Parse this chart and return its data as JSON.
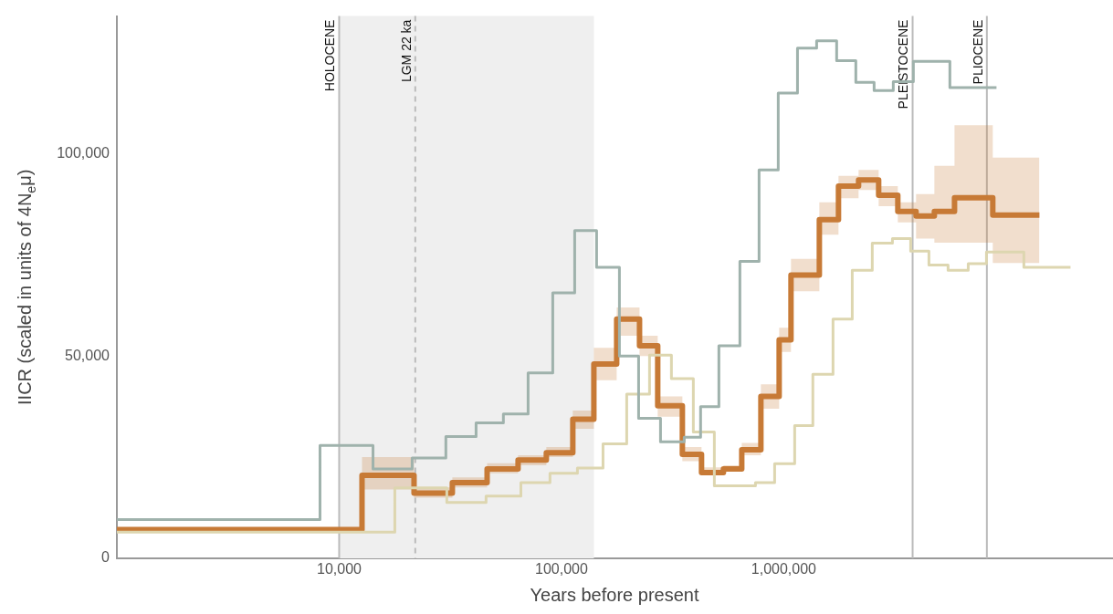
{
  "chart_data": {
    "type": "step",
    "xlabel": "Years before present",
    "ylabel": "IICR (scaled in units of 4N$_{e}$μ)",
    "log": "x",
    "xlim": [
      1000,
      30000000
    ],
    "ylim": [
      0,
      134000
    ],
    "xticks": [
      {
        "value": 10000,
        "label": "10,000"
      },
      {
        "value": 100000,
        "label": "100,000"
      },
      {
        "value": 1000000,
        "label": "1,000,000"
      }
    ],
    "yticks": [
      0,
      {
        "value": 50000,
        "label": "50,000"
      },
      {
        "value": 100000,
        "label": "100,000"
      }
    ],
    "grid": false,
    "legend": false,
    "marker": "none",
    "line_style": "solid",
    "series": [
      {
        "color": "#9fb2ac",
        "x": [
          1000,
          8200,
          14200,
          21300,
          30200,
          41300,
          54800,
          70800,
          91400,
          114700,
          143900,
          182300,
          222400,
          279000,
          356600,
          422600,
          510800,
          635000,
          774500,
          944600,
          1153000,
          1406000,
          1730000,
          2110000,
          2550000,
          3110000,
          3830000,
          5590000,
          9060000
        ],
        "values": [
          9600,
          27900,
          22100,
          24800,
          30100,
          33500,
          35700,
          45800,
          65600,
          81000,
          71900,
          50000,
          34600,
          28800,
          29900,
          37500,
          52500,
          73400,
          96000,
          115000,
          126100,
          127900,
          123000,
          117600,
          115600,
          117800,
          122800,
          116300,
          116300
        ]
      },
      {
        "color": "#ddd6b0",
        "x": [
          1000,
          17800,
          30500,
          45800,
          65700,
          88800,
          118000,
          153800,
          196600,
          249000,
          312400,
          392000,
          487300,
          746000,
          910000,
          1120000,
          1352000,
          1666000,
          2033000,
          2502000,
          3083000,
          3724000,
          4499000,
          5486000,
          6760000,
          8165000,
          12030000,
          19500000
        ],
        "values": [
          6500,
          17400,
          13800,
          15400,
          18700,
          21000,
          22300,
          28300,
          40600,
          50200,
          44400,
          31200,
          17900,
          18700,
          23400,
          32800,
          45500,
          59100,
          71200,
          77900,
          79000,
          75900,
          72500,
          71200,
          72800,
          75700,
          71900,
          71900
        ]
      },
      {
        "color": "#c77a36",
        "x": [
          1000,
          12670,
          21720,
          32300,
          46300,
          63800,
          85500,
          112500,
          139900,
          177200,
          224500,
          271100,
          349900,
          426700,
          535400,
          647300,
          789300,
          953600,
          1078000,
          1446000,
          1763000,
          2171000,
          2673000,
          3260000,
          3938000,
          4760000,
          5865000,
          8718000,
          14130000
        ],
        "values": [
          7100,
          20500,
          16100,
          18700,
          22100,
          24300,
          26100,
          34400,
          48000,
          59100,
          52500,
          37700,
          25700,
          21200,
          22100,
          26800,
          40000,
          54000,
          70000,
          83700,
          92000,
          93500,
          89700,
          85700,
          84600,
          85700,
          89100,
          84800,
          84800
        ],
        "lower": [
          6500,
          17000,
          15000,
          17500,
          21000,
          23000,
          25000,
          32000,
          44000,
          55000,
          50000,
          35000,
          24000,
          20500,
          21500,
          25500,
          37000,
          51000,
          66000,
          80000,
          89000,
          91000,
          87000,
          83000,
          79000,
          78000,
          78000,
          73000,
          73000
        ],
        "upper": [
          7700,
          25000,
          17500,
          20000,
          23500,
          25500,
          27500,
          36500,
          52000,
          62000,
          55000,
          40000,
          27500,
          22500,
          23000,
          28500,
          43000,
          57000,
          74000,
          88000,
          94500,
          96000,
          92000,
          88000,
          90000,
          97000,
          107000,
          99000,
          99000
        ]
      }
    ],
    "bands": [
      {
        "axis": "x",
        "from": 10000,
        "to": 140000,
        "color": "#efefef"
      }
    ],
    "ref_lines": [
      {
        "axis": "x",
        "value": 10000,
        "label": "HOLOCENE",
        "color": "#bbbbbb",
        "line_style": "solid"
      },
      {
        "axis": "x",
        "value": 22000,
        "label": "LGM 22 ka",
        "color": "#bbbbbb",
        "line_style": "dashed"
      },
      {
        "axis": "x",
        "value": 3800000,
        "label": "PLEISTOCENE",
        "color": "#bbbbbb",
        "line_style": "solid"
      },
      {
        "axis": "x",
        "value": 8200000,
        "label": "PLIOCENE",
        "color": "#bbbbbb",
        "line_style": "solid"
      }
    ]
  }
}
